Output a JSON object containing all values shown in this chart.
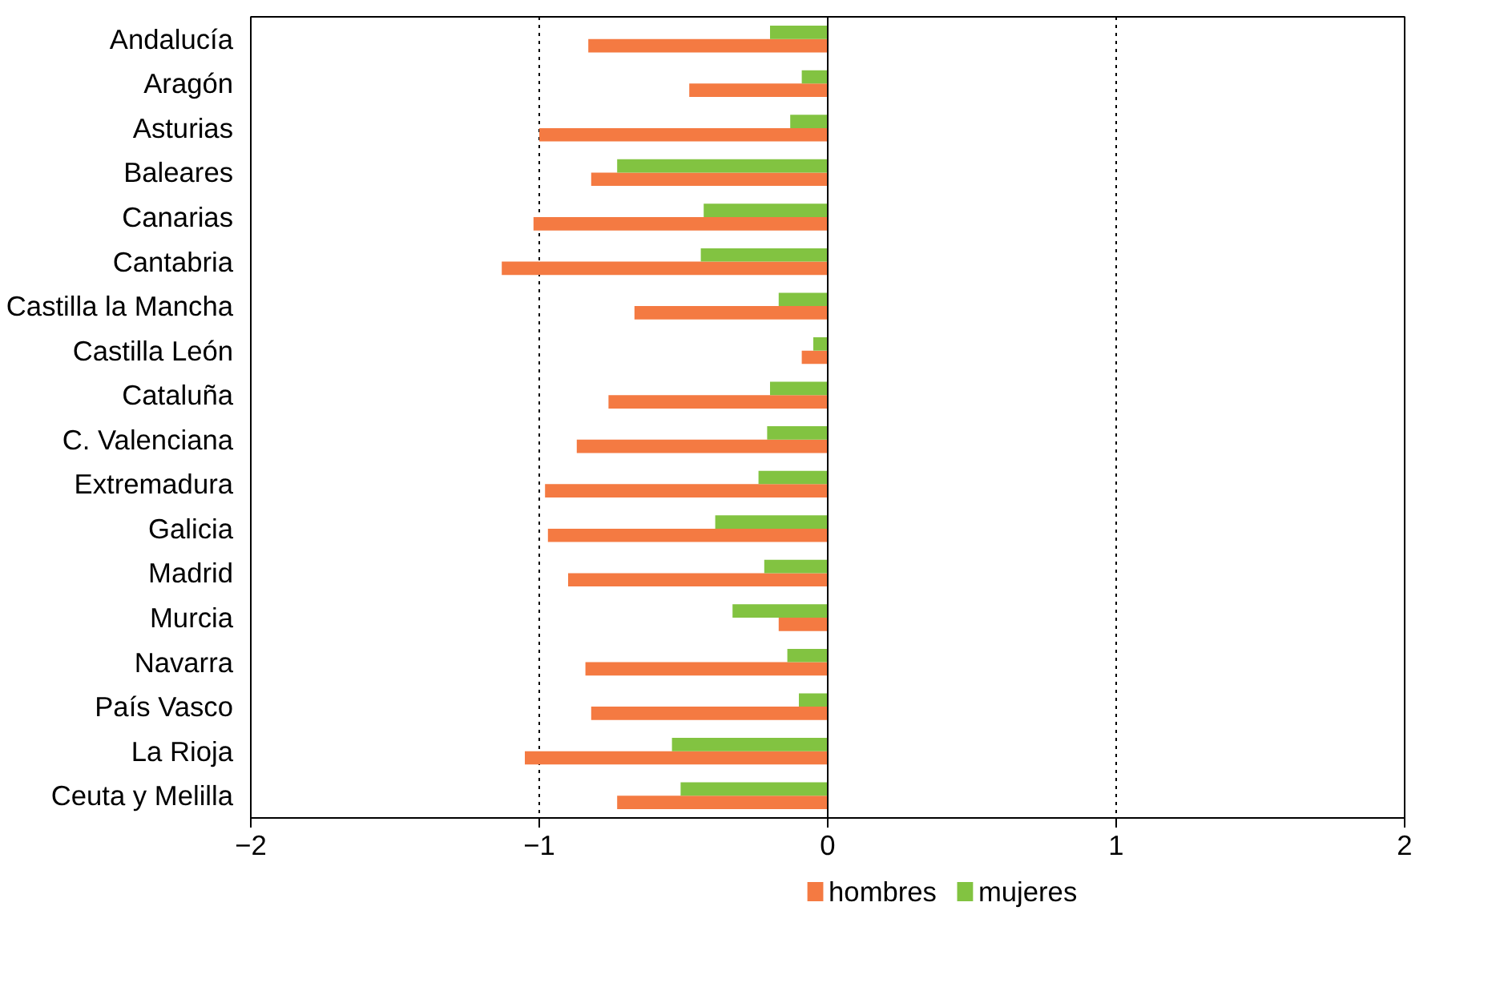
{
  "chart_data": {
    "type": "bar",
    "orientation": "horizontal",
    "categories": [
      "Andalucía",
      "Aragón",
      "Asturias",
      "Baleares",
      "Canarias",
      "Cantabria",
      "Castilla la Mancha",
      "Castilla León",
      "Cataluña",
      "C. Valenciana",
      "Extremadura",
      "Galicia",
      "Madrid",
      "Murcia",
      "Navarra",
      "País Vasco",
      "La Rioja",
      "Ceuta y Melilla"
    ],
    "series": [
      {
        "name": "hombres",
        "color": "#f47a42",
        "values": [
          -0.83,
          -0.48,
          -1.0,
          -0.82,
          -1.02,
          -1.13,
          -0.67,
          -0.09,
          -0.76,
          -0.87,
          -0.98,
          -0.97,
          -0.9,
          -0.17,
          -0.84,
          -0.82,
          -1.05,
          -0.73
        ]
      },
      {
        "name": "mujeres",
        "color": "#82c341",
        "values": [
          -0.2,
          -0.09,
          -0.13,
          -0.73,
          -0.43,
          -0.44,
          -0.17,
          -0.05,
          -0.2,
          -0.21,
          -0.24,
          -0.39,
          -0.22,
          -0.33,
          -0.14,
          -0.1,
          -0.54,
          -0.51
        ]
      }
    ],
    "xlim": [
      -2,
      2
    ],
    "xticks": [
      -2,
      -1,
      0,
      1,
      2
    ],
    "grid": "x",
    "legend": "bottom"
  }
}
